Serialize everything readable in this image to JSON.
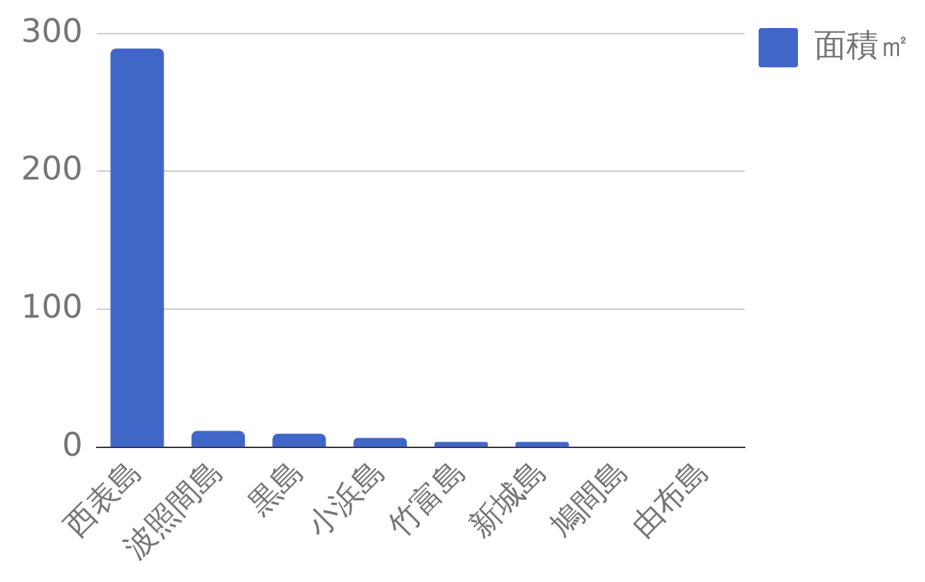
{
  "chart_data": {
    "type": "bar",
    "categories": [
      "西表島",
      "波照間島",
      "黒島",
      "小浜島",
      "竹富島",
      "新城島",
      "鳩間島",
      "由布島"
    ],
    "series": [
      {
        "name": "面積㎡",
        "color": "#4066c8",
        "values": [
          289,
          12,
          10,
          7,
          4,
          4,
          0,
          0
        ]
      }
    ],
    "ylim": [
      0,
      300
    ],
    "yticks": [
      0,
      100,
      200,
      300
    ],
    "grid": "y",
    "legend": "top right"
  }
}
